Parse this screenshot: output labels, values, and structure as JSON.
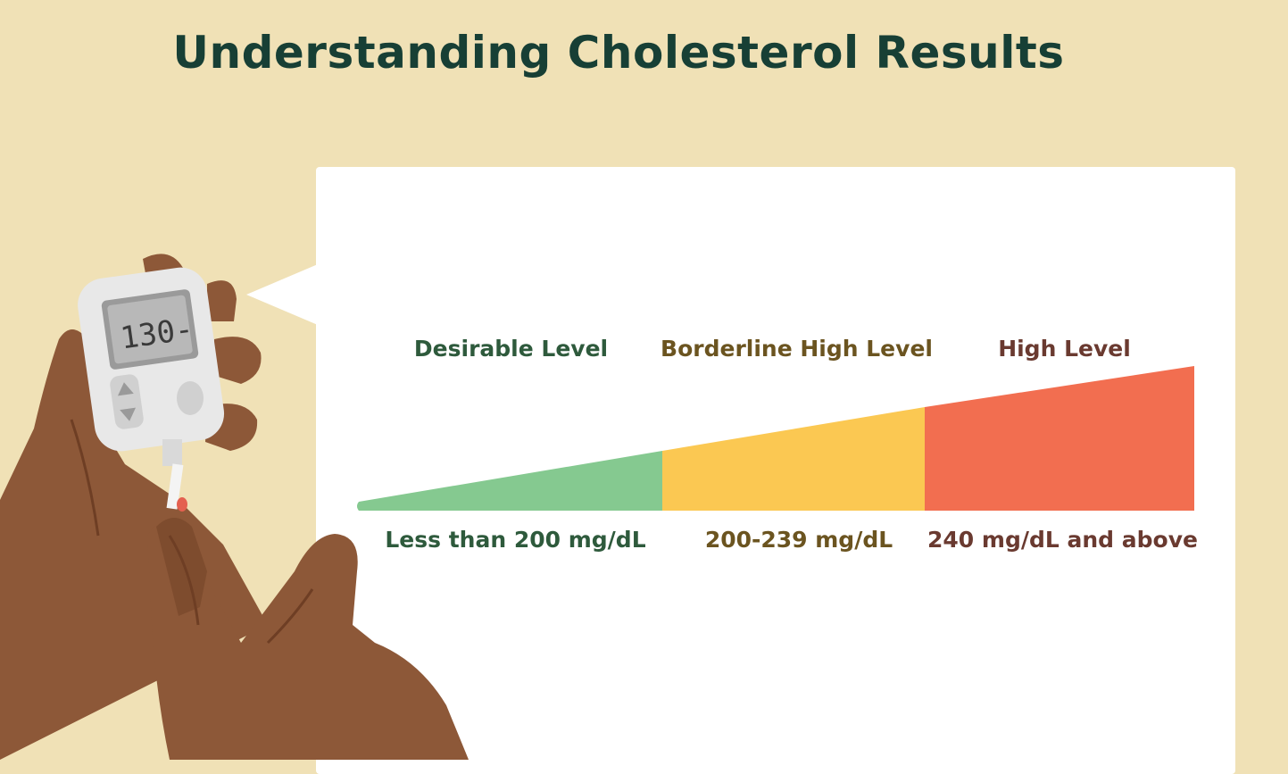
{
  "title": "Understanding Cholesterol Results",
  "meter_display": "130-",
  "levels": [
    {
      "label": "Desirable Level",
      "range": "Less than 200 mg/dL",
      "color": "#85c990"
    },
    {
      "label": "Borderline High Level",
      "range": "200-239 mg/dL",
      "color": "#fbc852"
    },
    {
      "label": "High Level",
      "range": "240 mg/dL and above",
      "color": "#f26e50"
    }
  ],
  "colors": {
    "background": "#f0e1b6",
    "title": "#173f35",
    "skin": "#8d5838",
    "meter_body": "#e8e8e8"
  },
  "icons": [
    "glucose-meter-icon",
    "hand-icon",
    "blood-drop-icon"
  ]
}
